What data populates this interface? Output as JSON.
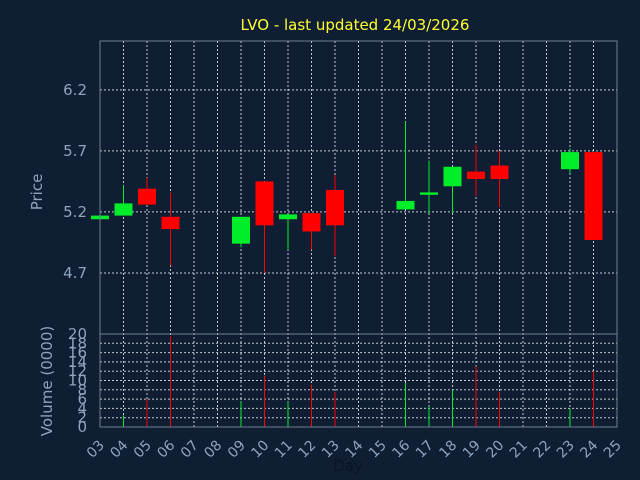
{
  "chart_data": {
    "type": "candlestick",
    "title": "LVO - last updated 24/03/2026",
    "xlabel": "Day",
    "x_ticks": [
      "03",
      "04",
      "05",
      "06",
      "07",
      "08",
      "09",
      "10",
      "11",
      "12",
      "13",
      "14",
      "15",
      "16",
      "17",
      "18",
      "19",
      "20",
      "21",
      "22",
      "23",
      "24",
      "25"
    ],
    "price_panel": {
      "ylabel": "Price",
      "ylim": [
        4.2,
        6.6
      ],
      "y_ticks": [
        "4.7",
        "5.2",
        "5.7",
        "6.2"
      ],
      "candles": [
        {
          "day": 3,
          "open": 5.14,
          "high": 5.18,
          "low": 5.14,
          "close": 5.17
        },
        {
          "day": 4,
          "open": 5.17,
          "high": 5.42,
          "low": 5.17,
          "close": 5.27
        },
        {
          "day": 5,
          "open": 5.39,
          "high": 5.48,
          "low": 5.26,
          "close": 5.26
        },
        {
          "day": 6,
          "open": 5.16,
          "high": 5.36,
          "low": 4.76,
          "close": 5.06
        },
        {
          "day": 9,
          "open": 4.94,
          "high": 5.16,
          "low": 4.91,
          "close": 5.16
        },
        {
          "day": 10,
          "open": 5.45,
          "high": 5.45,
          "low": 4.7,
          "close": 5.09
        },
        {
          "day": 11,
          "open": 5.14,
          "high": 5.18,
          "low": 4.89,
          "close": 5.18
        },
        {
          "day": 12,
          "open": 5.19,
          "high": 5.19,
          "low": 4.89,
          "close": 5.04
        },
        {
          "day": 13,
          "open": 5.38,
          "high": 5.5,
          "low": 4.84,
          "close": 5.09
        },
        {
          "day": 16,
          "open": 5.22,
          "high": 5.94,
          "low": 5.22,
          "close": 5.29
        },
        {
          "day": 17,
          "open": 5.34,
          "high": 5.62,
          "low": 5.19,
          "close": 5.36
        },
        {
          "day": 18,
          "open": 5.41,
          "high": 5.57,
          "low": 5.19,
          "close": 5.57
        },
        {
          "day": 19,
          "open": 5.53,
          "high": 5.75,
          "low": 5.33,
          "close": 5.47
        },
        {
          "day": 20,
          "open": 5.58,
          "high": 5.7,
          "low": 5.24,
          "close": 5.47
        },
        {
          "day": 23,
          "open": 5.55,
          "high": 5.72,
          "low": 5.52,
          "close": 5.69
        },
        {
          "day": 24,
          "open": 5.69,
          "high": 5.69,
          "low": 4.97,
          "close": 4.97
        }
      ]
    },
    "volume_panel": {
      "ylabel": "Volume (0000)",
      "ylim": [
        0,
        20
      ],
      "y_ticks": [
        "0",
        "2",
        "4",
        "6",
        "8",
        "10",
        "12",
        "14",
        "16",
        "18",
        "20"
      ],
      "values": [
        {
          "day": 3,
          "value": 0.5
        },
        {
          "day": 4,
          "value": 2.5
        },
        {
          "day": 5,
          "value": 6
        },
        {
          "day": 6,
          "value": 19.5
        },
        {
          "day": 9,
          "value": 5.5
        },
        {
          "day": 10,
          "value": 11
        },
        {
          "day": 11,
          "value": 5.5
        },
        {
          "day": 12,
          "value": 9
        },
        {
          "day": 13,
          "value": 7.5
        },
        {
          "day": 16,
          "value": 9.5
        },
        {
          "day": 17,
          "value": 4.5
        },
        {
          "day": 18,
          "value": 8
        },
        {
          "day": 19,
          "value": 13
        },
        {
          "day": 20,
          "value": 7.5
        },
        {
          "day": 23,
          "value": 4
        },
        {
          "day": 24,
          "value": 12
        }
      ]
    },
    "up_color": "#00ee2a",
    "down_color": "#ff0000",
    "grid": true
  }
}
